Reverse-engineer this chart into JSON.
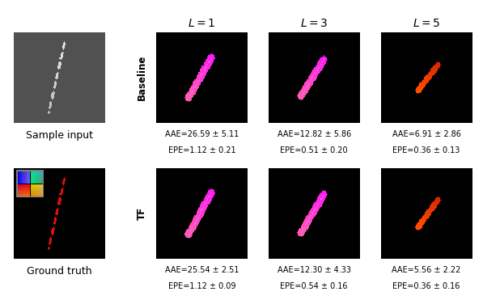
{
  "col_headers": [
    "$L = 1$",
    "$L = 3$",
    "$L = 5$"
  ],
  "row_labels": [
    "Baseline",
    "TF"
  ],
  "left_labels": [
    "Sample input",
    "Ground truth"
  ],
  "baseline_metrics": [
    [
      "AAE=26.59 ± 5.11",
      "EPE=1.12 ± 0.21"
    ],
    [
      "AAE=12.82 ± 5.86",
      "EPE=0.51 ± 0.20"
    ],
    [
      "AAE=6.91 ± 2.86",
      "EPE=0.36 ± 0.13"
    ]
  ],
  "tf_metrics": [
    [
      "AAE=25.54 ± 2.51",
      "EPE=1.12 ± 0.09"
    ],
    [
      "AAE=12.30 ± 4.33",
      "EPE=0.54 ± 0.16"
    ],
    [
      "AAE=5.56 ± 2.22",
      "EPE=0.36 ± 0.16"
    ]
  ],
  "bg_color": "white",
  "text_color": "black",
  "metric_fontsize": 7.0,
  "header_fontsize": 10,
  "label_fontsize": 9
}
